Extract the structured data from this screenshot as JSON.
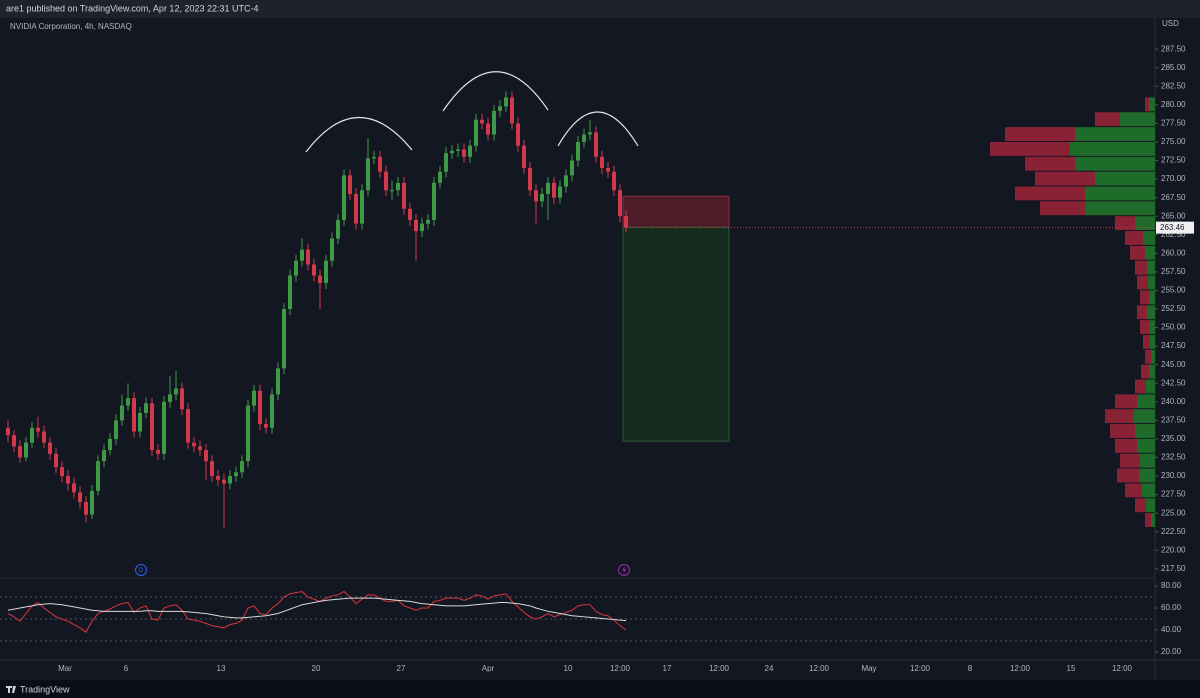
{
  "header": {
    "text": "are1 published on TradingView.com, Apr 12, 2023 22:31 UTC-4"
  },
  "footer": {
    "brand": "TradingView"
  },
  "chart_data": {
    "type": "candlestick",
    "title": "NVIDIA Corporation, 4h, NASDAQ",
    "currency": "USD",
    "up_color": "#3f9a47",
    "down_color": "#d13a4b",
    "ylim": [
      216.4,
      291.7
    ],
    "yticks": [
      {
        "value": 217.5,
        "label": "217.50"
      },
      {
        "value": 220,
        "label": "220.00"
      },
      {
        "value": 222.5,
        "label": "222.50"
      },
      {
        "value": 225,
        "label": "225.00"
      },
      {
        "value": 227.5,
        "label": "227.50"
      },
      {
        "value": 230,
        "label": "230.00"
      },
      {
        "value": 232.5,
        "label": "232.50"
      },
      {
        "value": 235,
        "label": "235.00"
      },
      {
        "value": 237.5,
        "label": "237.50"
      },
      {
        "value": 240,
        "label": "240.00"
      },
      {
        "value": 242.5,
        "label": "242.50"
      },
      {
        "value": 245,
        "label": "245.00"
      },
      {
        "value": 247.5,
        "label": "247.50"
      },
      {
        "value": 250,
        "label": "250.00"
      },
      {
        "value": 252.5,
        "label": "252.50"
      },
      {
        "value": 255,
        "label": "255.00"
      },
      {
        "value": 257.5,
        "label": "257.50"
      },
      {
        "value": 260,
        "label": "260.00"
      },
      {
        "value": 262.5,
        "label": "262.50"
      },
      {
        "value": 265,
        "label": "265.00"
      },
      {
        "value": 267.5,
        "label": "267.50"
      },
      {
        "value": 270,
        "label": "270.00"
      },
      {
        "value": 272.5,
        "label": "272.50"
      },
      {
        "value": 275,
        "label": "275.00"
      },
      {
        "value": 277.5,
        "label": "277.50"
      },
      {
        "value": 280,
        "label": "280.00"
      },
      {
        "value": 282.5,
        "label": "282.50"
      },
      {
        "value": 285,
        "label": "285.00"
      },
      {
        "value": 287.5,
        "label": "287.50"
      }
    ],
    "grid": false,
    "x_labels": [
      "Mar",
      "6",
      "13",
      "20",
      "27",
      "Apr",
      "10",
      "12:00",
      "17",
      "12:00",
      "24",
      "12:00",
      "May",
      "12:00",
      "8",
      "12:00",
      "15",
      "12:00"
    ],
    "events": [
      "D"
    ],
    "candles": [
      [
        236.5,
        237.5,
        234.5,
        235.5
      ],
      [
        235.5,
        236.2,
        233.2,
        234.0
      ],
      [
        234.0,
        234.8,
        231.8,
        232.5
      ],
      [
        232.5,
        235.3,
        232.0,
        234.5
      ],
      [
        234.5,
        237.3,
        233.8,
        236.5
      ],
      [
        236.5,
        238.0,
        235.2,
        236.0
      ],
      [
        236.0,
        236.8,
        233.8,
        234.5
      ],
      [
        234.5,
        235.2,
        232.2,
        233.0
      ],
      [
        233.0,
        233.8,
        230.4,
        231.2
      ],
      [
        231.2,
        232.0,
        229.2,
        230.0
      ],
      [
        230.0,
        230.8,
        228.0,
        229.0
      ],
      [
        229.0,
        229.8,
        227.0,
        227.8
      ],
      [
        227.8,
        228.6,
        225.6,
        226.5
      ],
      [
        226.5,
        227.3,
        223.8,
        224.8
      ],
      [
        224.8,
        228.8,
        224.2,
        228.0
      ],
      [
        228.0,
        232.8,
        227.4,
        232.0
      ],
      [
        232.0,
        234.3,
        231.2,
        233.5
      ],
      [
        233.5,
        235.8,
        232.8,
        235.0
      ],
      [
        235.0,
        238.3,
        234.2,
        237.5
      ],
      [
        237.5,
        241.0,
        236.8,
        239.5
      ],
      [
        239.5,
        242.5,
        238.8,
        240.5
      ],
      [
        240.5,
        241.3,
        235.2,
        236.0
      ],
      [
        236.0,
        239.3,
        235.2,
        238.5
      ],
      [
        238.5,
        240.6,
        237.8,
        239.8
      ],
      [
        239.8,
        240.6,
        232.7,
        233.5
      ],
      [
        233.5,
        234.3,
        232.2,
        233.0
      ],
      [
        233.0,
        240.8,
        232.2,
        240.0
      ],
      [
        240.0,
        243.5,
        239.2,
        241.0
      ],
      [
        241.0,
        244.2,
        240.2,
        241.8
      ],
      [
        241.8,
        242.6,
        238.2,
        239.0
      ],
      [
        239.0,
        239.8,
        233.7,
        234.5
      ],
      [
        234.5,
        235.3,
        233.2,
        234.0
      ],
      [
        234.0,
        234.8,
        232.7,
        233.5
      ],
      [
        233.5,
        234.3,
        229.5,
        232.0
      ],
      [
        232.0,
        232.8,
        229.2,
        230.0
      ],
      [
        230.0,
        230.8,
        228.7,
        229.5
      ],
      [
        229.5,
        230.3,
        223.0,
        229.0
      ],
      [
        229.0,
        230.8,
        228.2,
        230.0
      ],
      [
        230.0,
        231.3,
        229.2,
        230.5
      ],
      [
        230.5,
        232.8,
        229.7,
        232.0
      ],
      [
        232.0,
        240.3,
        231.2,
        239.5
      ],
      [
        239.5,
        242.3,
        238.7,
        241.5
      ],
      [
        241.5,
        242.3,
        236.2,
        237.0
      ],
      [
        237.0,
        237.8,
        235.7,
        236.5
      ],
      [
        236.5,
        241.8,
        235.7,
        241.0
      ],
      [
        241.0,
        245.3,
        240.2,
        244.5
      ],
      [
        244.5,
        253.3,
        243.7,
        252.5
      ],
      [
        252.5,
        257.8,
        251.7,
        257.0
      ],
      [
        257.0,
        259.8,
        256.2,
        259.0
      ],
      [
        259.0,
        262.0,
        258.2,
        260.5
      ],
      [
        260.5,
        261.3,
        257.7,
        258.5
      ],
      [
        258.5,
        259.3,
        256.2,
        257.0
      ],
      [
        257.0,
        257.8,
        252.5,
        256.0
      ],
      [
        256.0,
        259.8,
        255.2,
        259.0
      ],
      [
        259.0,
        262.8,
        258.2,
        262.0
      ],
      [
        262.0,
        265.3,
        261.2,
        264.5
      ],
      [
        264.5,
        271.3,
        263.7,
        270.5
      ],
      [
        270.5,
        271.3,
        267.2,
        268.0
      ],
      [
        268.0,
        268.8,
        263.2,
        264.0
      ],
      [
        264.0,
        269.3,
        263.2,
        268.5
      ],
      [
        268.5,
        275.5,
        267.7,
        272.8
      ],
      [
        272.8,
        273.8,
        272.0,
        273.0
      ],
      [
        273.0,
        273.8,
        270.2,
        271.0
      ],
      [
        271.0,
        271.8,
        267.7,
        268.5
      ],
      [
        268.5,
        269.8,
        267.2,
        268.5
      ],
      [
        268.5,
        270.3,
        267.7,
        269.5
      ],
      [
        269.5,
        270.3,
        265.2,
        266.0
      ],
      [
        266.0,
        266.8,
        263.7,
        264.5
      ],
      [
        264.5,
        265.3,
        259.0,
        263.0
      ],
      [
        263.0,
        264.8,
        262.2,
        264.0
      ],
      [
        264.0,
        265.3,
        263.2,
        264.5
      ],
      [
        264.5,
        270.3,
        263.7,
        269.5
      ],
      [
        269.5,
        271.8,
        268.7,
        271.0
      ],
      [
        271.0,
        274.3,
        270.2,
        273.5
      ],
      [
        273.5,
        274.6,
        272.7,
        273.8
      ],
      [
        273.8,
        274.8,
        273.0,
        274.0
      ],
      [
        274.0,
        274.8,
        272.2,
        273.0
      ],
      [
        273.0,
        275.3,
        272.2,
        274.5
      ],
      [
        274.5,
        278.8,
        273.7,
        278.0
      ],
      [
        278.0,
        278.8,
        276.7,
        277.5
      ],
      [
        277.5,
        278.3,
        275.2,
        276.0
      ],
      [
        276.0,
        280.0,
        275.2,
        279.2
      ],
      [
        279.2,
        280.6,
        278.4,
        279.8
      ],
      [
        279.8,
        281.8,
        279.0,
        281.0
      ],
      [
        281.0,
        281.8,
        276.7,
        277.5
      ],
      [
        277.5,
        278.3,
        273.7,
        274.5
      ],
      [
        274.5,
        275.3,
        270.7,
        271.5
      ],
      [
        271.5,
        272.3,
        267.7,
        268.5
      ],
      [
        268.5,
        269.3,
        264.0,
        267.0
      ],
      [
        267.0,
        268.8,
        266.2,
        268.0
      ],
      [
        268.0,
        270.3,
        264.5,
        269.5
      ],
      [
        269.5,
        270.3,
        266.7,
        267.5
      ],
      [
        267.5,
        269.8,
        266.7,
        269.0
      ],
      [
        269.0,
        271.3,
        268.2,
        270.5
      ],
      [
        270.5,
        273.3,
        269.7,
        272.5
      ],
      [
        272.5,
        275.8,
        271.7,
        275.0
      ],
      [
        275.0,
        276.8,
        274.2,
        276.0
      ],
      [
        276.0,
        278.0,
        275.2,
        276.3
      ],
      [
        276.3,
        277.1,
        272.2,
        273.0
      ],
      [
        273.0,
        273.8,
        270.7,
        271.5
      ],
      [
        271.5,
        272.3,
        270.2,
        271.0
      ],
      [
        271.0,
        271.8,
        267.7,
        268.5
      ],
      [
        268.5,
        269.3,
        264.2,
        265.0
      ],
      [
        265.0,
        265.8,
        262.8,
        263.46
      ]
    ],
    "position": {
      "stop": 267.7,
      "entry": 263.5,
      "target": 234.7,
      "stop_color": "#5a1f2a",
      "target_color": "#17301f"
    },
    "volume_profile": {
      "prices": [
        280,
        278,
        276,
        274,
        272,
        270,
        268,
        266,
        264,
        262,
        260,
        258,
        256,
        254,
        252,
        250,
        248,
        246,
        244,
        242,
        240,
        238,
        236,
        234,
        232,
        230,
        228,
        226,
        224
      ],
      "up": [
        6,
        35,
        80,
        85,
        80,
        60,
        70,
        70,
        20,
        12,
        10,
        8,
        7,
        6,
        8,
        6,
        5,
        4,
        6,
        9,
        18,
        22,
        20,
        18,
        15,
        16,
        13,
        9,
        4
      ],
      "down": [
        4,
        25,
        70,
        80,
        50,
        60,
        70,
        45,
        20,
        18,
        15,
        12,
        11,
        9,
        10,
        9,
        7,
        6,
        8,
        11,
        22,
        28,
        25,
        22,
        20,
        22,
        17,
        11,
        6
      ],
      "up_color": "#1f6b2a",
      "down_color": "#8a2236"
    },
    "rsi": {
      "ylim": [
        12.7,
        85.5
      ],
      "yticks": [
        {
          "value": 20,
          "label": "20.00"
        },
        {
          "value": 40,
          "label": "40.00"
        },
        {
          "value": 60,
          "label": "60.00"
        },
        {
          "value": 80,
          "label": "80.00"
        }
      ],
      "levels": [
        70,
        50,
        30
      ],
      "series": [
        {
          "color": "#d8343f",
          "values": [
            55,
            52,
            48,
            55,
            62,
            65,
            60,
            56,
            52,
            50,
            48,
            45,
            42,
            38,
            48,
            55,
            57,
            59,
            62,
            64,
            65,
            56,
            60,
            62,
            50,
            49,
            60,
            62,
            63,
            58,
            50,
            49,
            48,
            46,
            44,
            43,
            42,
            45,
            46,
            49,
            60,
            62,
            55,
            54,
            60,
            64,
            70,
            73,
            74,
            75,
            70,
            68,
            66,
            69,
            71,
            72,
            75,
            70,
            64,
            68,
            72,
            72,
            69,
            66,
            66,
            67,
            62,
            60,
            58,
            60,
            60,
            66,
            67,
            69,
            69,
            69,
            67,
            69,
            72,
            71,
            68,
            71,
            72,
            73,
            66,
            61,
            56,
            52,
            50,
            52,
            55,
            52,
            54,
            56,
            58,
            62,
            63,
            63,
            57,
            54,
            53,
            49,
            44,
            40
          ]
        },
        {
          "color": "#d9d9d9",
          "values": [
            58,
            59,
            60,
            61,
            62,
            63,
            63.5,
            64,
            63.5,
            63,
            62,
            61,
            60,
            59,
            58,
            57.5,
            57,
            57,
            57,
            57,
            57,
            57,
            57,
            57.5,
            57.5,
            57,
            57,
            57,
            57,
            57,
            56.5,
            56,
            55.5,
            55,
            54,
            53,
            52,
            51.5,
            51,
            51,
            51.5,
            52,
            52.5,
            53,
            54,
            55,
            57,
            59,
            61,
            63,
            64,
            65,
            66,
            67,
            67.5,
            68,
            68.5,
            69,
            69,
            69,
            69,
            69,
            68.5,
            68,
            67.5,
            67,
            66.5,
            66,
            65,
            64,
            63.5,
            63,
            62.5,
            62,
            62,
            62,
            62,
            62.5,
            63,
            63.5,
            64,
            64.5,
            65,
            65,
            64.5,
            64,
            63,
            62,
            60,
            58.5,
            57,
            56,
            55,
            54,
            53,
            52.5,
            52,
            51.5,
            51,
            50.5,
            50,
            49.5,
            49,
            48.5
          ]
        }
      ]
    }
  }
}
